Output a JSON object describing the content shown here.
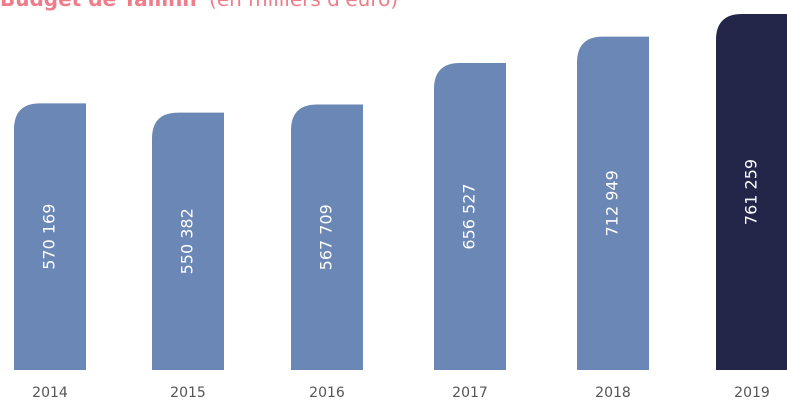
{
  "chart_data": {
    "type": "bar",
    "title": "Budget de Tallinn",
    "subtitle": "(en milliers d'euro)",
    "categories": [
      "2014",
      "2015",
      "2016",
      "2017",
      "2018",
      "2019"
    ],
    "values": [
      570169,
      550382,
      567709,
      656527,
      712949,
      761259
    ],
    "value_labels": [
      "570 169",
      "550 382",
      "567 709",
      "656 527",
      "712 949",
      "761 259"
    ],
    "colors": [
      "#6a87b6",
      "#6a87b6",
      "#6a87b6",
      "#6a87b6",
      "#6a87b6",
      "#232648"
    ],
    "title_color": "#f07c8a"
  }
}
